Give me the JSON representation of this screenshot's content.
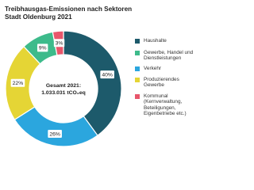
{
  "chart_data": {
    "type": "donut",
    "title": "Treibhausgas-Emissionen nach Sektoren",
    "subtitle": "Stadt Oldenburg 2021",
    "center_label": [
      "Gesamt 2021:",
      "1.033.031 tCO₂eq"
    ],
    "categories": [
      "Haushalte",
      "Verkehr",
      "Produzierendes Gewerbe",
      "Gewerbe, Handel und Dienstleistungen",
      "Kommunal (Kernverwaltung, Beteiligungen, Eigenbetriebe etc.)"
    ],
    "values": [
      40,
      26,
      22,
      9,
      3
    ],
    "value_labels": [
      "40%",
      "26%",
      "22%",
      "9%",
      "3%"
    ],
    "colors": [
      "#1d5a6b",
      "#2ba6de",
      "#e5d535",
      "#3dbb8b",
      "#e8566b"
    ]
  }
}
